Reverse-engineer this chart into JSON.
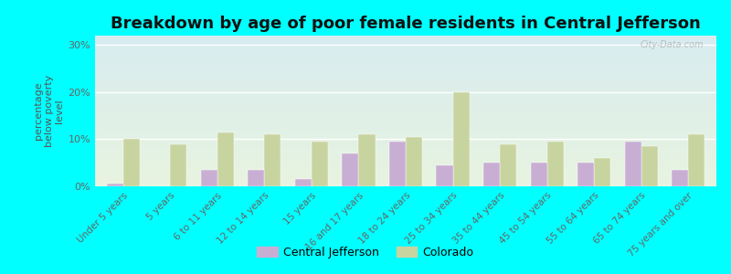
{
  "title": "Breakdown by age of poor female residents in Central Jefferson",
  "ylabel": "percentage\nbelow poverty\nlevel",
  "categories": [
    "Under 5 years",
    "5 years",
    "6 to 11 years",
    "12 to 14 years",
    "15 years",
    "16 and 17 years",
    "18 to 24 years",
    "25 to 34 years",
    "35 to 44 years",
    "45 to 54 years",
    "55 to 64 years",
    "65 to 74 years",
    "75 years and over"
  ],
  "central_jefferson": [
    0.5,
    0.0,
    3.5,
    3.5,
    1.5,
    7.0,
    9.5,
    4.5,
    5.0,
    5.0,
    5.0,
    9.5,
    3.5
  ],
  "colorado": [
    10.0,
    9.0,
    11.5,
    11.0,
    9.5,
    11.0,
    10.5,
    20.0,
    9.0,
    9.5,
    6.0,
    8.5,
    11.0
  ],
  "cj_color": "#c9aed4",
  "co_color": "#c8d4a0",
  "ylim": [
    0,
    32
  ],
  "yticks": [
    0,
    10,
    20,
    30
  ],
  "ytick_labels": [
    "0%",
    "10%",
    "20%",
    "30%"
  ],
  "outer_bg": "#00ffff",
  "title_fontsize": 13,
  "bar_width": 0.35,
  "legend_labels": [
    "Central Jefferson",
    "Colorado"
  ],
  "watermark": "City-Data.com"
}
